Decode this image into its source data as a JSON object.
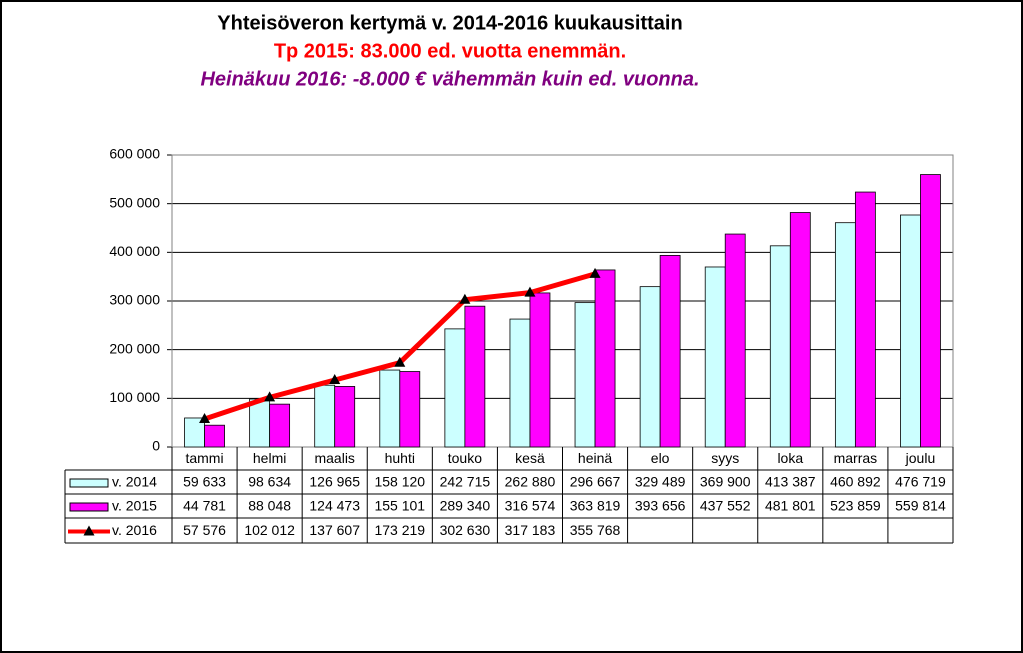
{
  "chart_data": {
    "type": "bar",
    "title": "Yhteisöveron kertymä  v. 2014-2016 kuukausittain",
    "subtitle": "Tp 2015: 83.000 ed. vuotta enemmän.",
    "annotation": "Heinäkuu 2016: -8.000 € vähemmän kuin ed. vuonna.",
    "categories": [
      "tammi",
      "helmi",
      "maalis",
      "huhti",
      "touko",
      "kesä",
      "heinä",
      "elo",
      "syys",
      "loka",
      "marras",
      "joulu"
    ],
    "series": [
      {
        "name": "v. 2014",
        "type": "bar",
        "color": "#ccffff",
        "values": [
          59633,
          98634,
          126965,
          158120,
          242715,
          262880,
          296667,
          329489,
          369900,
          413387,
          460892,
          476719
        ],
        "value_labels": [
          "59 633",
          "98 634",
          "126 965",
          "158 120",
          "242 715",
          "262 880",
          "296 667",
          "329 489",
          "369 900",
          "413 387",
          "460 892",
          "476 719"
        ]
      },
      {
        "name": "v. 2015",
        "type": "bar",
        "color": "#ff00ff",
        "values": [
          44781,
          88048,
          124473,
          155101,
          289340,
          316574,
          363819,
          393656,
          437552,
          481801,
          523859,
          559814
        ],
        "value_labels": [
          "44 781",
          "88 048",
          "124 473",
          "155 101",
          "289 340",
          "316 574",
          "363 819",
          "393 656",
          "437 552",
          "481 801",
          "523 859",
          "559 814"
        ]
      },
      {
        "name": "v. 2016",
        "type": "line",
        "color": "#ff0000",
        "values": [
          57576,
          102012,
          137607,
          173219,
          302630,
          317183,
          355768,
          null,
          null,
          null,
          null,
          null
        ],
        "value_labels": [
          "57 576",
          "102 012",
          "137 607",
          "173 219",
          "302 630",
          "317 183",
          "355 768",
          null,
          null,
          null,
          null,
          null
        ]
      }
    ],
    "ylim": [
      0,
      600000
    ],
    "yticks": [
      0,
      {
        "value": 100000,
        "label": "100 000"
      },
      {
        "value": 200000,
        "label": "200 000"
      },
      {
        "value": 300000,
        "label": "300 000"
      },
      {
        "value": 400000,
        "label": "400 000"
      },
      {
        "value": 500000,
        "label": "500 000"
      },
      {
        "value": 600000,
        "label": "600 000"
      }
    ],
    "grid": true
  }
}
